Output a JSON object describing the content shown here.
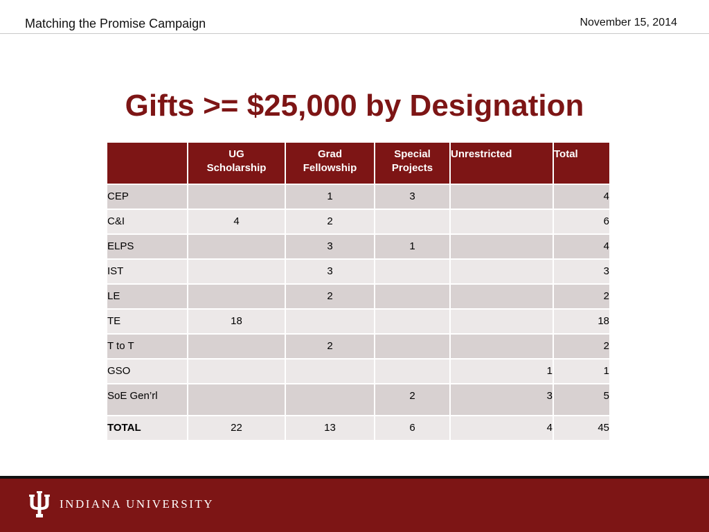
{
  "header": {
    "campaign_title": "Matching the Promise Campaign",
    "date": "November 15, 2014"
  },
  "slide_title": "Gifts >= $25,000 by Designation",
  "table": {
    "columns": [
      {
        "line1": "",
        "line2": ""
      },
      {
        "line1": "UG",
        "line2": "Scholarship"
      },
      {
        "line1": "Grad",
        "line2": "Fellowship"
      },
      {
        "line1": "Special",
        "line2": "Projects"
      },
      {
        "line1": "Unrestricted",
        "line2": ""
      },
      {
        "line1": "Total",
        "line2": ""
      }
    ],
    "rows": [
      {
        "label": "CEP",
        "ug": "",
        "grad": "1",
        "special": "3",
        "unrestricted": "",
        "total": "4"
      },
      {
        "label": "C&I",
        "ug": "4",
        "grad": "2",
        "special": "",
        "unrestricted": "",
        "total": "6"
      },
      {
        "label": "ELPS",
        "ug": "",
        "grad": "3",
        "special": "1",
        "unrestricted": "",
        "total": "4"
      },
      {
        "label": "IST",
        "ug": "",
        "grad": "3",
        "special": "",
        "unrestricted": "",
        "total": "3"
      },
      {
        "label": "LE",
        "ug": "",
        "grad": "2",
        "special": "",
        "unrestricted": "",
        "total": "2"
      },
      {
        "label": "TE",
        "ug": "18",
        "grad": "",
        "special": "",
        "unrestricted": "",
        "total": "18"
      },
      {
        "label": "T to T",
        "ug": "",
        "grad": "2",
        "special": "",
        "unrestricted": "",
        "total": "2"
      },
      {
        "label": "GSO",
        "ug": "",
        "grad": "",
        "special": "",
        "unrestricted": "1",
        "total": "1"
      },
      {
        "label": "SoE Gen’rl",
        "ug": "",
        "grad": "",
        "special": "2",
        "unrestricted": "3",
        "total": "5"
      },
      {
        "label": "TOTAL",
        "ug": "22",
        "grad": "13",
        "special": "6",
        "unrestricted": "4",
        "total": "45"
      }
    ]
  },
  "footer": {
    "university_name": "INDIANA UNIVERSITY",
    "logo_icon": "iu-trident-icon",
    "brand_color": "#7d1515"
  }
}
